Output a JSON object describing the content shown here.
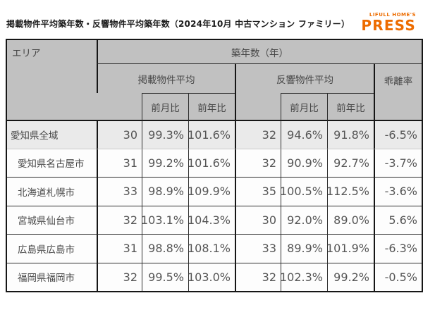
{
  "title": "掲載物件平均築年数・反響物件平均築年数（2024年10月 中古マンション ファミリー）",
  "logo": {
    "line1": "LIFULL HOME'S",
    "line2": "PRESS"
  },
  "headers": {
    "area": "エリア",
    "age": "築年数（年）",
    "listed": "掲載物件平均",
    "response": "反響物件平均",
    "divergence": "乖離率",
    "mom": "前月比",
    "yoy": "前年比"
  },
  "colors": {
    "brand_orange": "#ED6C00",
    "header_bg": "#C1C1C1",
    "highlight_row_bg": "#EAEAEA",
    "row_bg": "#FDFDFD",
    "border_dark": "#161616",
    "text_gray": "#555555"
  },
  "chart_data": {
    "type": "table",
    "title": "掲載物件平均築年数・反響物件平均築年数（2024年10月 中古マンション ファミリー）",
    "column_group": "築年数（年）",
    "columns": [
      "エリア",
      "掲載物件平均",
      "掲載物件平均 前月比",
      "掲載物件平均 前年比",
      "反響物件平均",
      "反響物件平均 前月比",
      "反響物件平均 前年比",
      "乖離率"
    ],
    "rows": [
      [
        "愛知県全域",
        30,
        "99.3%",
        "101.6%",
        32,
        "94.6%",
        "91.8%",
        "-6.5%"
      ],
      [
        "愛知県名古屋市",
        31,
        "99.2%",
        "101.6%",
        32,
        "90.9%",
        "92.7%",
        "-3.7%"
      ],
      [
        "北海道札幌市",
        33,
        "98.9%",
        "109.9%",
        35,
        "100.5%",
        "112.5%",
        "-3.6%"
      ],
      [
        "宮城県仙台市",
        32,
        "103.1%",
        "104.3%",
        30,
        "92.0%",
        "89.0%",
        "5.6%"
      ],
      [
        "広島県広島市",
        31,
        "98.8%",
        "108.1%",
        33,
        "89.9%",
        "101.9%",
        "-6.3%"
      ],
      [
        "福岡県福岡市",
        32,
        "99.5%",
        "103.0%",
        32,
        "102.3%",
        "99.2%",
        "-0.5%"
      ]
    ]
  }
}
